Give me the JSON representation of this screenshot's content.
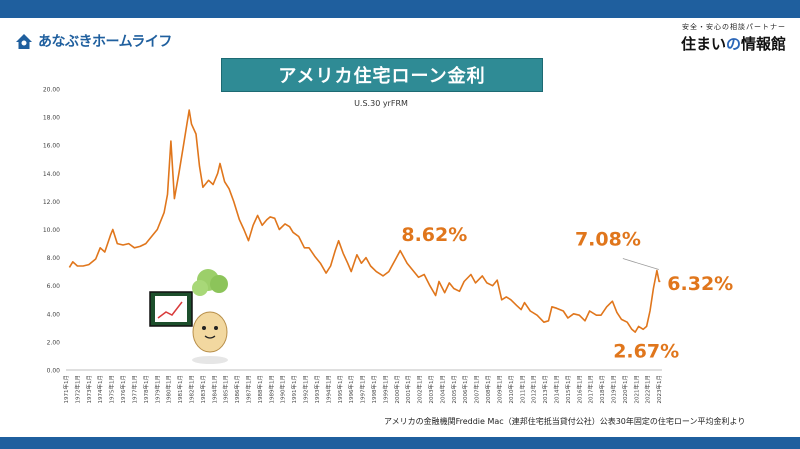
{
  "header": {
    "left_logo": "あなぶきホームライフ",
    "right_tagline": "安全・安心の相談パートナー",
    "right_logo_a": "住まい",
    "right_logo_b": "の",
    "right_logo_c": "情報館"
  },
  "colors": {
    "band": "#1f5f9e",
    "title_bg": "#2f8b95",
    "line": "#e0761c",
    "callout": "#e0761c"
  },
  "source_note": "アメリカの金融機関Freddie Mac（連邦住宅抵当貸付公社）公表30年固定の住宅ローン平均金利より",
  "chart_data": {
    "type": "line",
    "title": "アメリカ住宅ローン金利",
    "subtitle": "U.S.30 yrFRM",
    "ylim": [
      0,
      20
    ],
    "yticks": [
      "0.00",
      "2.00",
      "4.00",
      "6.00",
      "8.00",
      "10.00",
      "12.00",
      "14.00",
      "16.00",
      "18.00",
      "20.00"
    ],
    "xlim": [
      1971,
      2023.25
    ],
    "categories": [
      "1971年1月",
      "1972年1月",
      "1973年1月",
      "1974年1月",
      "1975年1月",
      "1976年1月",
      "1977年1月",
      "1978年1月",
      "1979年1月",
      "1980年1月",
      "1981年1月",
      "1982年1月",
      "1983年1月",
      "1984年1月",
      "1985年1月",
      "1986年1月",
      "1987年1月",
      "1988年1月",
      "1989年1月",
      "1990年1月",
      "1991年1月",
      "1992年1月",
      "1993年1月",
      "1994年1月",
      "1995年1月",
      "1996年1月",
      "1997年1月",
      "1998年1月",
      "1999年1月",
      "2000年1月",
      "2001年1月",
      "2002年1月",
      "2003年1月",
      "2004年1月",
      "2005年1月",
      "2006年1月",
      "2007年1月",
      "2008年1月",
      "2009年1月",
      "2010年1月",
      "2011年1月",
      "2012年1月",
      "2013年1月",
      "2014年1月",
      "2015年1月",
      "2016年1月",
      "2017年1月",
      "2018年1月",
      "2019年1月",
      "2020年1月",
      "2021年1月",
      "2022年1月",
      "2023年1月"
    ],
    "series": [
      {
        "name": "U.S.30 yrFRM",
        "points": [
          [
            1971.3,
            7.3
          ],
          [
            1971.6,
            7.7
          ],
          [
            1972.0,
            7.4
          ],
          [
            1972.5,
            7.4
          ],
          [
            1973.0,
            7.5
          ],
          [
            1973.6,
            7.9
          ],
          [
            1974.0,
            8.7
          ],
          [
            1974.4,
            8.4
          ],
          [
            1974.9,
            9.6
          ],
          [
            1975.1,
            10.0
          ],
          [
            1975.5,
            9.0
          ],
          [
            1976.0,
            8.9
          ],
          [
            1976.5,
            9.0
          ],
          [
            1977.0,
            8.7
          ],
          [
            1977.5,
            8.8
          ],
          [
            1978.0,
            9.0
          ],
          [
            1978.6,
            9.6
          ],
          [
            1979.0,
            10.0
          ],
          [
            1979.6,
            11.2
          ],
          [
            1979.9,
            12.5
          ],
          [
            1980.2,
            16.3
          ],
          [
            1980.5,
            12.2
          ],
          [
            1980.9,
            14.0
          ],
          [
            1981.3,
            16.0
          ],
          [
            1981.6,
            17.5
          ],
          [
            1981.8,
            18.5
          ],
          [
            1982.0,
            17.5
          ],
          [
            1982.4,
            16.8
          ],
          [
            1982.7,
            14.5
          ],
          [
            1983.0,
            13.0
          ],
          [
            1983.5,
            13.5
          ],
          [
            1983.9,
            13.2
          ],
          [
            1984.3,
            14.0
          ],
          [
            1984.5,
            14.7
          ],
          [
            1984.9,
            13.4
          ],
          [
            1985.3,
            12.9
          ],
          [
            1985.7,
            12.0
          ],
          [
            1986.2,
            10.7
          ],
          [
            1986.6,
            10.0
          ],
          [
            1987.0,
            9.2
          ],
          [
            1987.4,
            10.3
          ],
          [
            1987.8,
            11.0
          ],
          [
            1988.2,
            10.3
          ],
          [
            1988.6,
            10.7
          ],
          [
            1988.9,
            10.9
          ],
          [
            1989.3,
            10.8
          ],
          [
            1989.7,
            10.0
          ],
          [
            1990.2,
            10.4
          ],
          [
            1990.6,
            10.2
          ],
          [
            1990.9,
            9.8
          ],
          [
            1991.4,
            9.5
          ],
          [
            1991.9,
            8.7
          ],
          [
            1992.3,
            8.7
          ],
          [
            1992.8,
            8.1
          ],
          [
            1993.3,
            7.6
          ],
          [
            1993.8,
            6.9
          ],
          [
            1994.2,
            7.4
          ],
          [
            1994.6,
            8.5
          ],
          [
            1994.9,
            9.2
          ],
          [
            1995.3,
            8.3
          ],
          [
            1995.7,
            7.6
          ],
          [
            1996.0,
            7.0
          ],
          [
            1996.5,
            8.2
          ],
          [
            1996.9,
            7.6
          ],
          [
            1997.3,
            8.0
          ],
          [
            1997.7,
            7.4
          ],
          [
            1998.2,
            7.0
          ],
          [
            1998.8,
            6.7
          ],
          [
            1999.3,
            7.0
          ],
          [
            1999.9,
            7.9
          ],
          [
            2000.3,
            8.5
          ],
          [
            2000.9,
            7.6
          ],
          [
            2001.4,
            7.1
          ],
          [
            2001.9,
            6.6
          ],
          [
            2002.4,
            6.8
          ],
          [
            2002.9,
            6.0
          ],
          [
            2003.4,
            5.3
          ],
          [
            2003.7,
            6.3
          ],
          [
            2004.2,
            5.5
          ],
          [
            2004.6,
            6.2
          ],
          [
            2005.0,
            5.8
          ],
          [
            2005.5,
            5.6
          ],
          [
            2005.9,
            6.3
          ],
          [
            2006.5,
            6.8
          ],
          [
            2006.9,
            6.2
          ],
          [
            2007.5,
            6.7
          ],
          [
            2007.9,
            6.2
          ],
          [
            2008.4,
            6.0
          ],
          [
            2008.8,
            6.4
          ],
          [
            2009.2,
            5.0
          ],
          [
            2009.6,
            5.2
          ],
          [
            2010.0,
            5.0
          ],
          [
            2010.5,
            4.6
          ],
          [
            2010.9,
            4.3
          ],
          [
            2011.2,
            4.8
          ],
          [
            2011.7,
            4.2
          ],
          [
            2012.3,
            3.9
          ],
          [
            2012.9,
            3.4
          ],
          [
            2013.3,
            3.5
          ],
          [
            2013.6,
            4.5
          ],
          [
            2014.0,
            4.4
          ],
          [
            2014.6,
            4.2
          ],
          [
            2015.0,
            3.7
          ],
          [
            2015.5,
            4.0
          ],
          [
            2016.0,
            3.9
          ],
          [
            2016.5,
            3.5
          ],
          [
            2016.9,
            4.2
          ],
          [
            2017.5,
            3.9
          ],
          [
            2017.9,
            3.9
          ],
          [
            2018.4,
            4.5
          ],
          [
            2018.9,
            4.9
          ],
          [
            2019.3,
            4.1
          ],
          [
            2019.7,
            3.6
          ],
          [
            2020.2,
            3.4
          ],
          [
            2020.6,
            2.9
          ],
          [
            2020.9,
            2.7
          ],
          [
            2021.2,
            3.1
          ],
          [
            2021.6,
            2.9
          ],
          [
            2021.9,
            3.1
          ],
          [
            2022.2,
            4.2
          ],
          [
            2022.5,
            5.8
          ],
          [
            2022.8,
            7.08
          ],
          [
            2023.0,
            6.3
          ],
          [
            2023.1,
            6.32
          ]
        ]
      }
    ],
    "annotations": [
      {
        "text": "8.62%",
        "x": 2000.4,
        "y": 8.62
      },
      {
        "text": "7.08%",
        "x": 2022.8,
        "y": 7.08
      },
      {
        "text": "6.32%",
        "x": 2023.1,
        "y": 6.32
      },
      {
        "text": "2.67%",
        "x": 2020.9,
        "y": 2.67
      }
    ]
  }
}
